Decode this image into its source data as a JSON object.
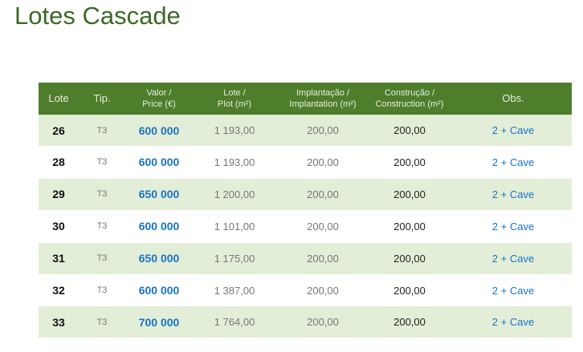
{
  "header": {
    "title": "Lotes Cascade"
  },
  "table": {
    "columns": [
      [
        "Lote"
      ],
      [
        "Tip."
      ],
      [
        "Valor /",
        "Price (€)"
      ],
      [
        "Lote /",
        "Plot (m²)"
      ],
      [
        "Implantação /",
        "Implantation (m²)"
      ],
      [
        "Construção /",
        "Construction (m²)"
      ],
      [
        "Obs."
      ]
    ],
    "rows": [
      [
        "26",
        "T3",
        "600 000",
        "1 193,00",
        "200,00",
        "200,00",
        "2 + Cave"
      ],
      [
        "28",
        "T3",
        "600 000",
        "1 193,00",
        "200,00",
        "200,00",
        "2 + Cave"
      ],
      [
        "29",
        "T3",
        "650 000",
        "1 200,00",
        "200,00",
        "200,00",
        "2 + Cave"
      ],
      [
        "30",
        "T3",
        "600 000",
        "1 101,00",
        "200,00",
        "200,00",
        "2 + Cave"
      ],
      [
        "31",
        "T3",
        "650 000",
        "1 175,00",
        "200,00",
        "200,00",
        "2 + Cave"
      ],
      [
        "32",
        "T3",
        "600 000",
        "1 387,00",
        "200,00",
        "200,00",
        "2 + Cave"
      ],
      [
        "33",
        "T3",
        "700 000",
        "1 764,00",
        "200,00",
        "200,00",
        "2 + Cave"
      ]
    ]
  }
}
